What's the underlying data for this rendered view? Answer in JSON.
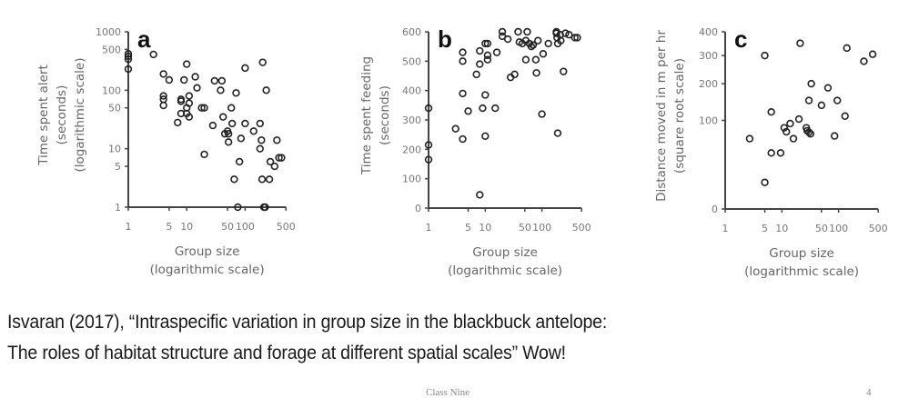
{
  "chart_data": [
    {
      "type": "scatter",
      "panel": "a",
      "title": "",
      "xlabel": "Group size",
      "xlabel_sub": "(logarithmic scale)",
      "ylabel": "Time spent alert",
      "ylabel_sub1": "(seconds)",
      "ylabel_sub2": "(logarithmic scale)",
      "xscale": "log",
      "yscale": "log",
      "xlim": [
        1,
        500
      ],
      "ylim": [
        1,
        1000
      ],
      "xticks": [
        1,
        5,
        10,
        50,
        100,
        500
      ],
      "yticks": [
        1,
        5,
        10,
        50,
        100,
        500,
        1000
      ],
      "grid": false,
      "points": [
        [
          1,
          420
        ],
        [
          1,
          380
        ],
        [
          1,
          340
        ],
        [
          1,
          230
        ],
        [
          2.7,
          410
        ],
        [
          4,
          190
        ],
        [
          5,
          150
        ],
        [
          4,
          80
        ],
        [
          4,
          70
        ],
        [
          4,
          55
        ],
        [
          7,
          28
        ],
        [
          8,
          70
        ],
        [
          8,
          65
        ],
        [
          8,
          40
        ],
        [
          9,
          150
        ],
        [
          10,
          280
        ],
        [
          10,
          50
        ],
        [
          10,
          40
        ],
        [
          11,
          80
        ],
        [
          11,
          60
        ],
        [
          11,
          35
        ],
        [
          14,
          170
        ],
        [
          15,
          110
        ],
        [
          18,
          50
        ],
        [
          20,
          50
        ],
        [
          20,
          8
        ],
        [
          28,
          25
        ],
        [
          30,
          145
        ],
        [
          38,
          100
        ],
        [
          40,
          145
        ],
        [
          42,
          35
        ],
        [
          45,
          18
        ],
        [
          50,
          20
        ],
        [
          52,
          13
        ],
        [
          52,
          18
        ],
        [
          58,
          50
        ],
        [
          60,
          27
        ],
        [
          65,
          3
        ],
        [
          70,
          90
        ],
        [
          80,
          6
        ],
        [
          85,
          15
        ],
        [
          100,
          240
        ],
        [
          100,
          27
        ],
        [
          140,
          20
        ],
        [
          180,
          27
        ],
        [
          180,
          10
        ],
        [
          190,
          14
        ],
        [
          195,
          3
        ],
        [
          200,
          300
        ],
        [
          210,
          1
        ],
        [
          220,
          1
        ],
        [
          230,
          100
        ],
        [
          260,
          3
        ],
        [
          270,
          6
        ],
        [
          320,
          5
        ],
        [
          350,
          14
        ],
        [
          380,
          7
        ],
        [
          420,
          7
        ],
        [
          75,
          1
        ]
      ]
    },
    {
      "type": "scatter",
      "panel": "b",
      "title": "",
      "xlabel": "Group size",
      "xlabel_sub": "(logarithmic scale)",
      "ylabel": "Time spent feeding",
      "ylabel_sub1": "(seconds)",
      "xscale": "log",
      "yscale": "linear",
      "xlim": [
        1,
        500
      ],
      "ylim": [
        0,
        600
      ],
      "xticks": [
        1,
        5,
        10,
        50,
        100,
        500
      ],
      "yticks": [
        0,
        100,
        200,
        300,
        400,
        500,
        600
      ],
      "grid": false,
      "points": [
        [
          1,
          340
        ],
        [
          1,
          215
        ],
        [
          1,
          165
        ],
        [
          3,
          270
        ],
        [
          4,
          530
        ],
        [
          4,
          500
        ],
        [
          4,
          390
        ],
        [
          4,
          235
        ],
        [
          5,
          330
        ],
        [
          7,
          455
        ],
        [
          8,
          535
        ],
        [
          8,
          490
        ],
        [
          8,
          45
        ],
        [
          9,
          340
        ],
        [
          10,
          560
        ],
        [
          10,
          385
        ],
        [
          10,
          245
        ],
        [
          11,
          560
        ],
        [
          11,
          520
        ],
        [
          11,
          505
        ],
        [
          15,
          340
        ],
        [
          16,
          530
        ],
        [
          20,
          600
        ],
        [
          20,
          585
        ],
        [
          25,
          575
        ],
        [
          28,
          445
        ],
        [
          33,
          455
        ],
        [
          38,
          600
        ],
        [
          40,
          565
        ],
        [
          45,
          560
        ],
        [
          55,
          600
        ],
        [
          52,
          570
        ],
        [
          52,
          505
        ],
        [
          60,
          560
        ],
        [
          65,
          550
        ],
        [
          70,
          555
        ],
        [
          78,
          505
        ],
        [
          80,
          460
        ],
        [
          85,
          570
        ],
        [
          100,
          320
        ],
        [
          105,
          525
        ],
        [
          130,
          560
        ],
        [
          180,
          600
        ],
        [
          180,
          595
        ],
        [
          185,
          580
        ],
        [
          190,
          560
        ],
        [
          190,
          255
        ],
        [
          210,
          590
        ],
        [
          215,
          570
        ],
        [
          240,
          465
        ],
        [
          260,
          595
        ],
        [
          300,
          590
        ],
        [
          380,
          580
        ],
        [
          420,
          580
        ]
      ]
    },
    {
      "type": "scatter",
      "panel": "c",
      "title": "",
      "xlabel": "Group size",
      "xlabel_sub": "(logarithmic scale)",
      "ylabel": "Distance moved in m per hr",
      "ylabel_sub1": "(square root scale)",
      "xscale": "log",
      "yscale": "sqrt",
      "xlim": [
        1,
        500
      ],
      "ylim": [
        0,
        400
      ],
      "xticks": [
        1,
        5,
        10,
        50,
        100,
        500
      ],
      "yticks": [
        0,
        100,
        200,
        300,
        400
      ],
      "grid": false,
      "points": [
        [
          2.7,
          63
        ],
        [
          5,
          300
        ],
        [
          5,
          9
        ],
        [
          6.5,
          120
        ],
        [
          6.5,
          40
        ],
        [
          9.5,
          40
        ],
        [
          11,
          84
        ],
        [
          12,
          76
        ],
        [
          14,
          93
        ],
        [
          16,
          63
        ],
        [
          20,
          103
        ],
        [
          21,
          350
        ],
        [
          27,
          84
        ],
        [
          28,
          78
        ],
        [
          30,
          75
        ],
        [
          32,
          72
        ],
        [
          30,
          150
        ],
        [
          33,
          200
        ],
        [
          50,
          137
        ],
        [
          65,
          187
        ],
        [
          85,
          68
        ],
        [
          95,
          150
        ],
        [
          130,
          110
        ],
        [
          140,
          330
        ],
        [
          280,
          278
        ],
        [
          400,
          305
        ]
      ]
    }
  ],
  "caption": {
    "line1": "Isvaran (2017), “Intraspecific variation in group size in the blackbuck antelope:",
    "line2": "The roles of habitat structure and forage at different spatial scales” Wow!"
  },
  "footer": {
    "center": "Class Nine",
    "page": "4"
  }
}
